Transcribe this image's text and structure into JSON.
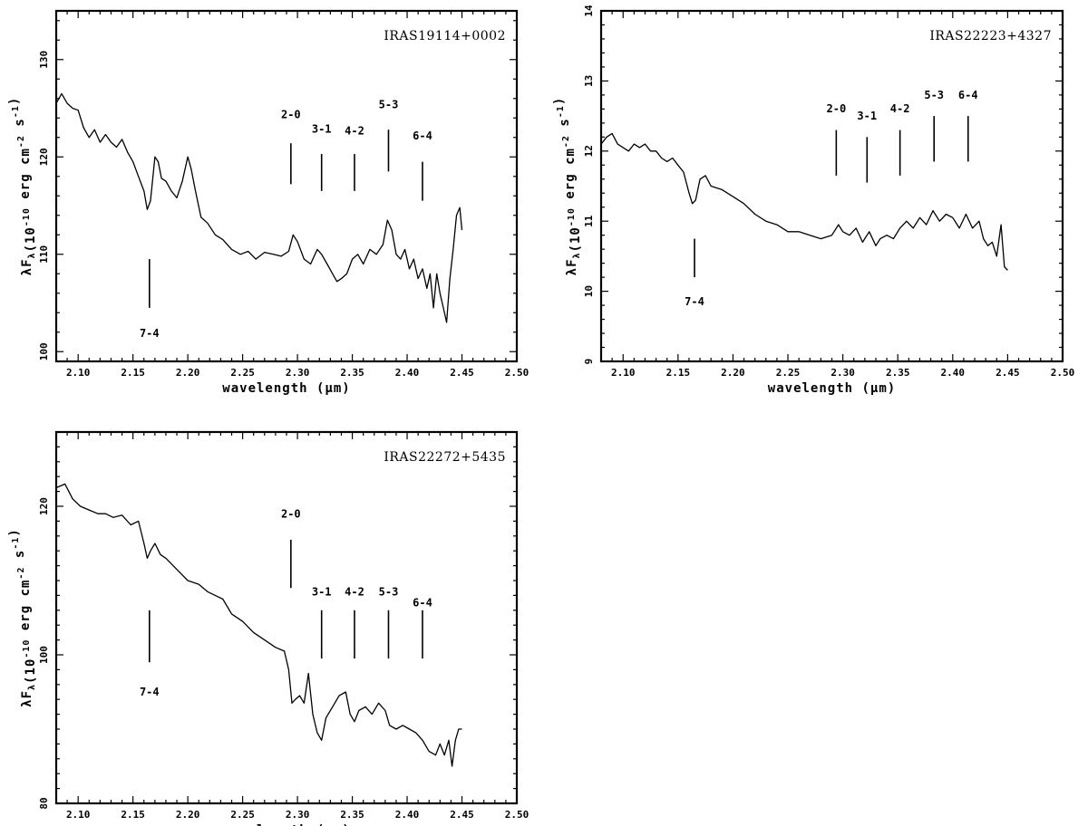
{
  "chart_data": [
    {
      "type": "line",
      "title": "IRAS19114+0002",
      "xlabel": "wavelength (μm)",
      "ylabel": "λF_λ(10^-10 erg cm^-2 s^-1)",
      "xlim": [
        2.08,
        2.5
      ],
      "ylim": [
        99,
        135
      ],
      "xticks": [
        2.1,
        2.15,
        2.2,
        2.25,
        2.3,
        2.35,
        2.4,
        2.45,
        2.5
      ],
      "xtick_labels": [
        "2.10",
        "2.15",
        "2.20",
        "2.25",
        "2.30",
        "2.35",
        "2.40",
        "2.45",
        "2.50"
      ],
      "yticks": [
        100,
        110,
        120,
        130
      ],
      "ytick_labels": [
        "100",
        "110",
        "120",
        "130"
      ],
      "series": [
        {
          "x": [
            2.08,
            2.085,
            2.09,
            2.095,
            2.1,
            2.105,
            2.11,
            2.115,
            2.12,
            2.125,
            2.13,
            2.135,
            2.14,
            2.145,
            2.15,
            2.155,
            2.16,
            2.163,
            2.166,
            2.17,
            2.173,
            2.176,
            2.18,
            2.185,
            2.19,
            2.195,
            2.2,
            2.203,
            2.207,
            2.212,
            2.218,
            2.225,
            2.232,
            2.24,
            2.248,
            2.255,
            2.262,
            2.27,
            2.278,
            2.285,
            2.292,
            2.296,
            2.3,
            2.306,
            2.312,
            2.318,
            2.322,
            2.327,
            2.332,
            2.336,
            2.34,
            2.345,
            2.35,
            2.355,
            2.36,
            2.366,
            2.372,
            2.378,
            2.382,
            2.386,
            2.39,
            2.394,
            2.398,
            2.402,
            2.406,
            2.41,
            2.414,
            2.418,
            2.421,
            2.424,
            2.427,
            2.43,
            2.433,
            2.436,
            2.439,
            2.442,
            2.445,
            2.448,
            2.45
          ],
          "y": [
            125.5,
            126.5,
            125.5,
            125.0,
            124.8,
            123.0,
            122.0,
            122.8,
            121.5,
            122.3,
            121.5,
            121.0,
            121.8,
            120.5,
            119.5,
            118.0,
            116.5,
            114.6,
            115.5,
            120.0,
            119.5,
            117.8,
            117.5,
            116.5,
            115.8,
            117.5,
            120.0,
            118.8,
            116.5,
            113.8,
            113.2,
            112.0,
            111.5,
            110.5,
            110.0,
            110.3,
            109.5,
            110.2,
            110.0,
            109.8,
            110.3,
            112.0,
            111.3,
            109.5,
            109.0,
            110.5,
            110.0,
            109.0,
            108.0,
            107.2,
            107.5,
            108.0,
            109.5,
            110.0,
            109.0,
            110.5,
            110.0,
            111.0,
            113.5,
            112.5,
            110.0,
            109.5,
            110.5,
            108.5,
            109.5,
            107.5,
            108.5,
            106.5,
            108.0,
            104.5,
            108.0,
            106.0,
            104.5,
            103.0,
            107.5,
            110.5,
            114.0,
            114.8,
            112.5
          ]
        }
      ],
      "markers": [
        {
          "label": "7-4",
          "x": 2.165,
          "y1": 104.5,
          "y2": 109.5,
          "label_y": 101.5
        },
        {
          "label": "2-0",
          "x": 2.294,
          "y1": 117.2,
          "y2": 121.4,
          "label_y": 124.0
        },
        {
          "label": "3-1",
          "x": 2.322,
          "y1": 116.5,
          "y2": 120.3,
          "label_y": 122.5
        },
        {
          "label": "4-2",
          "x": 2.352,
          "y1": 116.5,
          "y2": 120.3,
          "label_y": 122.3
        },
        {
          "label": "5-3",
          "x": 2.383,
          "y1": 118.5,
          "y2": 122.8,
          "label_y": 125.0
        },
        {
          "label": "6-4",
          "x": 2.414,
          "y1": 115.5,
          "y2": 119.5,
          "label_y": 121.8
        }
      ]
    },
    {
      "type": "line",
      "title": "IRAS22223+4327",
      "xlabel": "wavelength (μm)",
      "ylabel": "λF_λ(10^-10 erg cm^-2 s^-1)",
      "xlim": [
        2.08,
        2.5
      ],
      "ylim": [
        9.0,
        14.0
      ],
      "xticks": [
        2.1,
        2.15,
        2.2,
        2.25,
        2.3,
        2.35,
        2.4,
        2.45,
        2.5
      ],
      "xtick_labels": [
        "2.10",
        "2.15",
        "2.20",
        "2.25",
        "2.30",
        "2.35",
        "2.40",
        "2.45",
        "2.50"
      ],
      "yticks": [
        9,
        10,
        11,
        12,
        13,
        14
      ],
      "ytick_labels": [
        "9",
        "10",
        "11",
        "12",
        "13",
        "14"
      ],
      "series": [
        {
          "x": [
            2.08,
            2.085,
            2.09,
            2.095,
            2.1,
            2.105,
            2.11,
            2.115,
            2.12,
            2.125,
            2.13,
            2.135,
            2.14,
            2.145,
            2.15,
            2.155,
            2.16,
            2.163,
            2.166,
            2.17,
            2.175,
            2.18,
            2.19,
            2.2,
            2.21,
            2.22,
            2.23,
            2.24,
            2.25,
            2.26,
            2.27,
            2.28,
            2.29,
            2.296,
            2.3,
            2.306,
            2.312,
            2.318,
            2.324,
            2.33,
            2.334,
            2.34,
            2.346,
            2.352,
            2.358,
            2.364,
            2.37,
            2.376,
            2.382,
            2.388,
            2.394,
            2.4,
            2.406,
            2.412,
            2.418,
            2.424,
            2.428,
            2.432,
            2.436,
            2.44,
            2.444,
            2.447,
            2.45
          ],
          "y": [
            12.1,
            12.2,
            12.25,
            12.1,
            12.05,
            12.0,
            12.1,
            12.05,
            12.1,
            12.0,
            12.0,
            11.9,
            11.85,
            11.9,
            11.8,
            11.7,
            11.4,
            11.25,
            11.3,
            11.6,
            11.65,
            11.5,
            11.45,
            11.35,
            11.25,
            11.1,
            11.0,
            10.95,
            10.85,
            10.85,
            10.8,
            10.75,
            10.8,
            10.95,
            10.85,
            10.8,
            10.9,
            10.7,
            10.85,
            10.65,
            10.75,
            10.8,
            10.75,
            10.9,
            11.0,
            10.9,
            11.05,
            10.95,
            11.15,
            11.0,
            11.1,
            11.05,
            10.9,
            11.1,
            10.9,
            11.0,
            10.75,
            10.65,
            10.7,
            10.5,
            10.95,
            10.35,
            10.3
          ]
        }
      ],
      "markers": [
        {
          "label": "7-4",
          "x": 2.165,
          "y1": 10.2,
          "y2": 10.75,
          "label_y": 9.8
        },
        {
          "label": "2-0",
          "x": 2.294,
          "y1": 11.65,
          "y2": 12.3,
          "label_y": 12.55
        },
        {
          "label": "3-1",
          "x": 2.322,
          "y1": 11.55,
          "y2": 12.2,
          "label_y": 12.45
        },
        {
          "label": "4-2",
          "x": 2.352,
          "y1": 11.65,
          "y2": 12.3,
          "label_y": 12.55
        },
        {
          "label": "5-3",
          "x": 2.383,
          "y1": 11.85,
          "y2": 12.5,
          "label_y": 12.75
        },
        {
          "label": "6-4",
          "x": 2.414,
          "y1": 11.85,
          "y2": 12.5,
          "label_y": 12.75
        }
      ]
    },
    {
      "type": "line",
      "title": "IRAS22272+5435",
      "xlabel": "wavelength (μm)",
      "ylabel": "λF_λ(10^-10 erg cm^-2 s^-1)",
      "xlim": [
        2.08,
        2.5
      ],
      "ylim": [
        80,
        130
      ],
      "xticks": [
        2.1,
        2.15,
        2.2,
        2.25,
        2.3,
        2.35,
        2.4,
        2.45,
        2.5
      ],
      "xtick_labels": [
        "2.10",
        "2.15",
        "2.20",
        "2.25",
        "2.30",
        "2.35",
        "2.40",
        "2.45",
        "2.50"
      ],
      "yticks": [
        80,
        100,
        120
      ],
      "ytick_labels": [
        "80",
        "100",
        "120"
      ],
      "series": [
        {
          "x": [
            2.08,
            2.088,
            2.095,
            2.102,
            2.11,
            2.118,
            2.125,
            2.132,
            2.14,
            2.148,
            2.155,
            2.16,
            2.163,
            2.166,
            2.17,
            2.175,
            2.18,
            2.19,
            2.2,
            2.21,
            2.218,
            2.225,
            2.232,
            2.24,
            2.25,
            2.26,
            2.27,
            2.28,
            2.288,
            2.292,
            2.295,
            2.298,
            2.302,
            2.306,
            2.31,
            2.314,
            2.318,
            2.322,
            2.326,
            2.332,
            2.338,
            2.344,
            2.348,
            2.352,
            2.356,
            2.362,
            2.368,
            2.374,
            2.38,
            2.384,
            2.39,
            2.396,
            2.402,
            2.408,
            2.414,
            2.42,
            2.426,
            2.43,
            2.434,
            2.438,
            2.441,
            2.444,
            2.447,
            2.45
          ],
          "y": [
            122.5,
            123.0,
            121.0,
            120.0,
            119.5,
            119.0,
            119.0,
            118.5,
            118.8,
            117.5,
            118.0,
            115.0,
            113.0,
            114.0,
            115.0,
            113.5,
            113.0,
            111.5,
            110.0,
            109.5,
            108.5,
            108.0,
            107.5,
            105.5,
            104.5,
            103.0,
            102.0,
            101.0,
            100.5,
            98.0,
            93.5,
            94.0,
            94.5,
            93.5,
            97.5,
            92.0,
            89.5,
            88.5,
            91.5,
            93.0,
            94.5,
            95.0,
            92.0,
            91.0,
            92.5,
            93.0,
            92.0,
            93.5,
            92.5,
            90.5,
            90.0,
            90.5,
            90.0,
            89.5,
            88.5,
            87.0,
            86.5,
            88.0,
            86.5,
            88.5,
            85.0,
            88.5,
            90.0,
            90.0
          ]
        }
      ],
      "markers": [
        {
          "label": "7-4",
          "x": 2.165,
          "y1": 99.0,
          "y2": 106.0,
          "label_y": 94.5
        },
        {
          "label": "2-0",
          "x": 2.294,
          "y1": 109.0,
          "y2": 115.5,
          "label_y": 118.5
        },
        {
          "label": "3-1",
          "x": 2.322,
          "y1": 99.5,
          "y2": 106.0,
          "label_y": 108.0
        },
        {
          "label": "4-2",
          "x": 2.352,
          "y1": 99.5,
          "y2": 106.0,
          "label_y": 108.0
        },
        {
          "label": "5-3",
          "x": 2.383,
          "y1": 99.5,
          "y2": 106.0,
          "label_y": 108.0
        },
        {
          "label": "6-4",
          "x": 2.414,
          "y1": 99.5,
          "y2": 106.0,
          "label_y": 106.5
        }
      ]
    }
  ]
}
